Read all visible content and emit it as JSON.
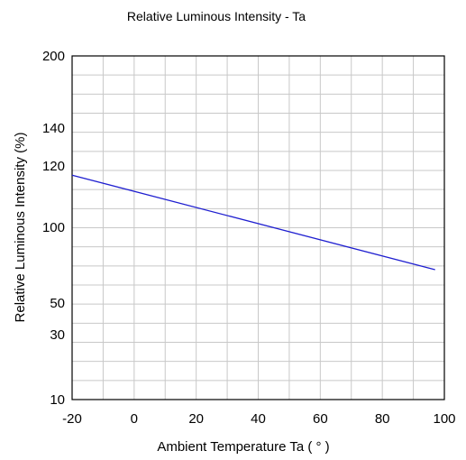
{
  "chart_data": {
    "type": "line",
    "title": "Relative Luminous Intensity - Ta",
    "xlabel": "Ambient Temperature Ta (  °  )",
    "ylabel": "Relative Luminous Intensity (%)",
    "xlim": [
      -20,
      100
    ],
    "x_ticks": [
      "-20",
      "0",
      "20",
      "40",
      "60",
      "80",
      "100"
    ],
    "y_ticks": [
      "200",
      "140",
      "120",
      "100",
      "50",
      "30",
      "10"
    ],
    "grid": true,
    "line_color": "#1f1fd0",
    "series": [
      {
        "x": [
          -20,
          97
        ],
        "y": [
          117,
          72
        ]
      }
    ]
  }
}
